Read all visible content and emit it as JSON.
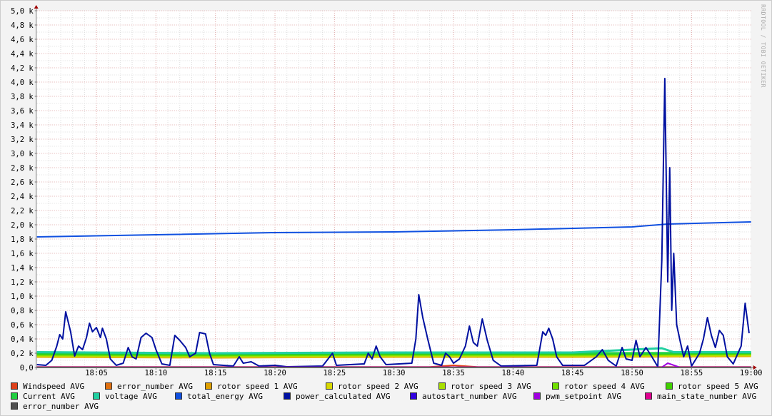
{
  "watermark": "RRDTOOL / TOBI OETIKER",
  "chart_data": {
    "type": "line",
    "title": "",
    "xlabel": "",
    "ylabel": "",
    "xlim": [
      "18:00",
      "19:00"
    ],
    "ylim": [
      0,
      5000
    ],
    "x_tick_labels": [
      "18:05",
      "18:10",
      "18:15",
      "18:20",
      "18:25",
      "18:30",
      "18:35",
      "18:40",
      "18:45",
      "18:50",
      "18:55",
      "19:00"
    ],
    "y_tick_labels": [
      "0,0",
      "0,2 k",
      "0,4 k",
      "0,6 k",
      "0,8 k",
      "1,0 k",
      "1,2 k",
      "1,4 k",
      "1,6 k",
      "1,8 k",
      "2,0 k",
      "2,2 k",
      "2,4 k",
      "2,6 k",
      "2,8 k",
      "3,0 k",
      "3,2 k",
      "3,4 k",
      "3,6 k",
      "3,8 k",
      "4,0 k",
      "4,2 k",
      "4,4 k",
      "4,6 k",
      "4,8 k",
      "5,0 k"
    ],
    "grid": true,
    "legend_position": "bottom",
    "series": [
      {
        "name": "Windspeed AVG",
        "color": "#e0401a",
        "points": [
          [
            "18:00:00",
            8
          ],
          [
            "18:33:00",
            8
          ],
          [
            "18:35:00",
            30
          ],
          [
            "18:37:00",
            8
          ],
          [
            "19:00:00",
            8
          ]
        ]
      },
      {
        "name": "error_number AVG",
        "color": "#e07010",
        "points": [
          [
            "18:00:00",
            5
          ],
          [
            "19:00:00",
            5
          ]
        ]
      },
      {
        "name": "rotor speed 1 AVG",
        "color": "#e0a000",
        "points": [
          [
            "18:00:00",
            150
          ],
          [
            "18:15:00",
            140
          ],
          [
            "18:30:00",
            150
          ],
          [
            "18:45:00",
            150
          ],
          [
            "19:00:00",
            160
          ]
        ]
      },
      {
        "name": "rotor speed 2 AVG",
        "color": "#d8d800",
        "points": [
          [
            "18:00:00",
            160
          ],
          [
            "18:15:00",
            150
          ],
          [
            "18:30:00",
            160
          ],
          [
            "18:45:00",
            160
          ],
          [
            "19:00:00",
            170
          ]
        ]
      },
      {
        "name": "rotor speed 3 AVG",
        "color": "#a8e000",
        "points": [
          [
            "18:00:00",
            170
          ],
          [
            "18:15:00",
            160
          ],
          [
            "18:30:00",
            170
          ],
          [
            "18:45:00",
            170
          ],
          [
            "19:00:00",
            180
          ]
        ]
      },
      {
        "name": "rotor speed 4 AVG",
        "color": "#70e000",
        "points": [
          [
            "18:00:00",
            180
          ],
          [
            "18:15:00",
            170
          ],
          [
            "18:30:00",
            180
          ],
          [
            "18:45:00",
            180
          ],
          [
            "19:00:00",
            190
          ]
        ]
      },
      {
        "name": "rotor speed 5 AVG",
        "color": "#40d000",
        "points": [
          [
            "18:00:00",
            190
          ],
          [
            "18:15:00",
            180
          ],
          [
            "18:30:00",
            190
          ],
          [
            "18:45:00",
            190
          ],
          [
            "19:00:00",
            200
          ]
        ]
      },
      {
        "name": "Current AVG",
        "color": "#20d040",
        "points": [
          [
            "18:00:00",
            200
          ],
          [
            "18:15:00",
            190
          ],
          [
            "18:30:00",
            200
          ],
          [
            "18:45:00",
            200
          ],
          [
            "19:00:00",
            205
          ]
        ]
      },
      {
        "name": "voltage AVG",
        "color": "#20d0a0",
        "points": [
          [
            "18:00:00",
            215
          ],
          [
            "18:15:00",
            200
          ],
          [
            "18:30:00",
            210
          ],
          [
            "18:45:00",
            210
          ],
          [
            "18:52:30",
            270
          ],
          [
            "18:53:30",
            215
          ],
          [
            "19:00:00",
            215
          ]
        ]
      },
      {
        "name": "total_energy AVG",
        "color": "#1050e0",
        "points": [
          [
            "18:00:00",
            1830
          ],
          [
            "18:10:00",
            1860
          ],
          [
            "18:20:00",
            1890
          ],
          [
            "18:30:00",
            1900
          ],
          [
            "18:40:00",
            1930
          ],
          [
            "18:50:00",
            1970
          ],
          [
            "18:53:00",
            2010
          ],
          [
            "19:00:00",
            2040
          ]
        ]
      },
      {
        "name": "power_calculated AVG",
        "color": "#0010a0",
        "points": [
          [
            "18:00:00",
            40
          ],
          [
            "18:00:45",
            30
          ],
          [
            "18:01:15",
            100
          ],
          [
            "18:01:40",
            300
          ],
          [
            "18:01:55",
            460
          ],
          [
            "18:02:10",
            400
          ],
          [
            "18:02:25",
            780
          ],
          [
            "18:02:50",
            500
          ],
          [
            "18:03:10",
            160
          ],
          [
            "18:03:30",
            300
          ],
          [
            "18:03:50",
            250
          ],
          [
            "18:04:10",
            420
          ],
          [
            "18:04:25",
            620
          ],
          [
            "18:04:40",
            500
          ],
          [
            "18:05:00",
            560
          ],
          [
            "18:05:20",
            420
          ],
          [
            "18:05:30",
            550
          ],
          [
            "18:05:50",
            400
          ],
          [
            "18:06:10",
            120
          ],
          [
            "18:06:40",
            30
          ],
          [
            "18:07:15",
            60
          ],
          [
            "18:07:40",
            280
          ],
          [
            "18:08:00",
            150
          ],
          [
            "18:08:20",
            120
          ],
          [
            "18:08:45",
            420
          ],
          [
            "18:09:10",
            480
          ],
          [
            "18:09:40",
            420
          ],
          [
            "18:10:00",
            250
          ],
          [
            "18:10:30",
            50
          ],
          [
            "18:11:10",
            30
          ],
          [
            "18:11:35",
            450
          ],
          [
            "18:12:00",
            380
          ],
          [
            "18:12:30",
            280
          ],
          [
            "18:12:50",
            150
          ],
          [
            "18:13:20",
            200
          ],
          [
            "18:13:40",
            490
          ],
          [
            "18:14:10",
            470
          ],
          [
            "18:14:30",
            200
          ],
          [
            "18:14:50",
            40
          ],
          [
            "18:16:30",
            20
          ],
          [
            "18:17:00",
            150
          ],
          [
            "18:17:20",
            60
          ],
          [
            "18:18:00",
            80
          ],
          [
            "18:18:40",
            20
          ],
          [
            "18:20:00",
            30
          ],
          [
            "18:21:00",
            10
          ],
          [
            "18:24:00",
            20
          ],
          [
            "18:24:50",
            200
          ],
          [
            "18:25:10",
            30
          ],
          [
            "18:27:30",
            50
          ],
          [
            "18:27:50",
            200
          ],
          [
            "18:28:10",
            120
          ],
          [
            "18:28:30",
            300
          ],
          [
            "18:28:50",
            150
          ],
          [
            "18:29:20",
            40
          ],
          [
            "18:31:30",
            60
          ],
          [
            "18:31:50",
            400
          ],
          [
            "18:32:05",
            1020
          ],
          [
            "18:32:25",
            700
          ],
          [
            "18:32:50",
            400
          ],
          [
            "18:33:20",
            60
          ],
          [
            "18:34:00",
            30
          ],
          [
            "18:34:20",
            200
          ],
          [
            "18:34:40",
            150
          ],
          [
            "18:35:00",
            60
          ],
          [
            "18:35:30",
            120
          ],
          [
            "18:36:00",
            300
          ],
          [
            "18:36:20",
            580
          ],
          [
            "18:36:40",
            350
          ],
          [
            "18:37:00",
            300
          ],
          [
            "18:37:25",
            680
          ],
          [
            "18:37:50",
            380
          ],
          [
            "18:38:20",
            100
          ],
          [
            "18:39:00",
            20
          ],
          [
            "18:42:00",
            30
          ],
          [
            "18:42:30",
            500
          ],
          [
            "18:42:45",
            450
          ],
          [
            "18:43:00",
            550
          ],
          [
            "18:43:20",
            400
          ],
          [
            "18:43:40",
            150
          ],
          [
            "18:44:10",
            30
          ],
          [
            "18:46:00",
            30
          ],
          [
            "18:47:00",
            150
          ],
          [
            "18:47:30",
            250
          ],
          [
            "18:48:00",
            100
          ],
          [
            "18:48:40",
            20
          ],
          [
            "18:49:10",
            280
          ],
          [
            "18:49:30",
            120
          ],
          [
            "18:50:00",
            100
          ],
          [
            "18:50:20",
            380
          ],
          [
            "18:50:40",
            150
          ],
          [
            "18:51:10",
            280
          ],
          [
            "18:51:40",
            150
          ],
          [
            "18:52:10",
            10
          ],
          [
            "18:52:30",
            1500
          ],
          [
            "18:52:45",
            4050
          ],
          [
            "18:53:00",
            1200
          ],
          [
            "18:53:10",
            2800
          ],
          [
            "18:53:20",
            800
          ],
          [
            "18:53:30",
            1600
          ],
          [
            "18:53:45",
            600
          ],
          [
            "18:54:00",
            400
          ],
          [
            "18:54:20",
            150
          ],
          [
            "18:54:40",
            300
          ],
          [
            "18:55:00",
            20
          ],
          [
            "18:55:40",
            200
          ],
          [
            "18:56:00",
            400
          ],
          [
            "18:56:20",
            700
          ],
          [
            "18:56:40",
            450
          ],
          [
            "18:57:00",
            280
          ],
          [
            "18:57:20",
            520
          ],
          [
            "18:57:40",
            450
          ],
          [
            "18:58:00",
            150
          ],
          [
            "18:58:30",
            50
          ],
          [
            "18:59:10",
            300
          ],
          [
            "18:59:30",
            900
          ],
          [
            "18:59:50",
            480
          ]
        ]
      },
      {
        "name": "autostart_number AVG",
        "color": "#3000e0",
        "points": [
          [
            "18:00:00",
            2
          ],
          [
            "19:00:00",
            2
          ]
        ]
      },
      {
        "name": "pwm_setpoint AVG",
        "color": "#a000e0",
        "points": [
          [
            "18:00:00",
            3
          ],
          [
            "18:52:30",
            3
          ],
          [
            "18:53:00",
            60
          ],
          [
            "18:54:00",
            3
          ],
          [
            "19:00:00",
            3
          ]
        ]
      },
      {
        "name": "main_state_number AVG",
        "color": "#e00090",
        "points": [
          [
            "18:00:00",
            1
          ],
          [
            "19:00:00",
            1
          ]
        ]
      },
      {
        "name": "error_number AVG",
        "color": "#505050",
        "points": [
          [
            "18:00:00",
            0
          ],
          [
            "19:00:00",
            0
          ]
        ]
      }
    ]
  }
}
